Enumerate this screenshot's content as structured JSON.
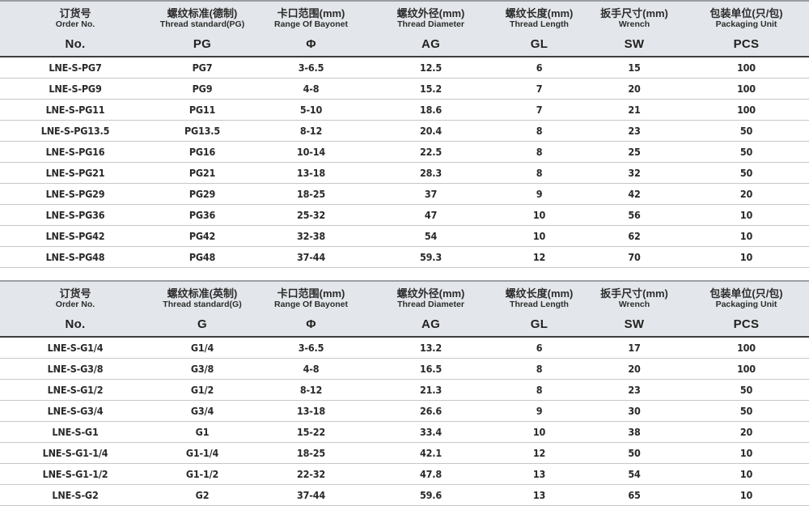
{
  "colors": {
    "header_bg": "#e3e6ea",
    "header_top_border": "#9b9fa3",
    "header_bottom_border": "#3c3e40",
    "row_separator": "#c5c7c9",
    "text": "#2a2a2a"
  },
  "tables": [
    {
      "name": "pg-metric-thread-table",
      "columns": [
        {
          "zh": "订货号",
          "en": "Order No.",
          "sym": "No."
        },
        {
          "zh": "螺纹标准(德制)",
          "en": "Thread standard(PG)",
          "sym": "PG"
        },
        {
          "zh": "卡口范围(mm)",
          "en": "Range Of Bayonet",
          "sym": "Φ"
        },
        {
          "zh": "螺纹外径(mm)",
          "en": "Thread Diameter",
          "sym": "AG"
        },
        {
          "zh": "螺纹长度(mm)",
          "en": "Thread Length",
          "sym": "GL"
        },
        {
          "zh": "扳手尺寸(mm)",
          "en": "Wrench",
          "sym": "SW"
        },
        {
          "zh": "包装单位(只/包)",
          "en": "Packaging Unit",
          "sym": "PCS"
        }
      ],
      "rows": [
        [
          "LNE-S-PG7",
          "PG7",
          "3-6.5",
          "12.5",
          "6",
          "15",
          "100"
        ],
        [
          "LNE-S-PG9",
          "PG9",
          "4-8",
          "15.2",
          "7",
          "20",
          "100"
        ],
        [
          "LNE-S-PG11",
          "PG11",
          "5-10",
          "18.6",
          "7",
          "21",
          "100"
        ],
        [
          "LNE-S-PG13.5",
          "PG13.5",
          "8-12",
          "20.4",
          "8",
          "23",
          "50"
        ],
        [
          "LNE-S-PG16",
          "PG16",
          "10-14",
          "22.5",
          "8",
          "25",
          "50"
        ],
        [
          "LNE-S-PG21",
          "PG21",
          "13-18",
          "28.3",
          "8",
          "32",
          "50"
        ],
        [
          "LNE-S-PG29",
          "PG29",
          "18-25",
          "37",
          "9",
          "42",
          "20"
        ],
        [
          "LNE-S-PG36",
          "PG36",
          "25-32",
          "47",
          "10",
          "56",
          "10"
        ],
        [
          "LNE-S-PG42",
          "PG42",
          "32-38",
          "54",
          "10",
          "62",
          "10"
        ],
        [
          "LNE-S-PG48",
          "PG48",
          "37-44",
          "59.3",
          "12",
          "70",
          "10"
        ]
      ]
    },
    {
      "name": "g-imperial-thread-table",
      "columns": [
        {
          "zh": "订货号",
          "en": "Order No.",
          "sym": "No."
        },
        {
          "zh": "螺纹标准(英制)",
          "en": "Thread standard(G)",
          "sym": "G"
        },
        {
          "zh": "卡口范围(mm)",
          "en": "Range Of Bayonet",
          "sym": "Φ"
        },
        {
          "zh": "螺纹外径(mm)",
          "en": "Thread Diameter",
          "sym": "AG"
        },
        {
          "zh": "螺纹长度(mm)",
          "en": "Thread Length",
          "sym": "GL"
        },
        {
          "zh": "扳手尺寸(mm)",
          "en": "Wrench",
          "sym": "SW"
        },
        {
          "zh": "包装单位(只/包)",
          "en": "Packaging Unit",
          "sym": "PCS"
        }
      ],
      "rows": [
        [
          "LNE-S-G1/4",
          "G1/4",
          "3-6.5",
          "13.2",
          "6",
          "17",
          "100"
        ],
        [
          "LNE-S-G3/8",
          "G3/8",
          "4-8",
          "16.5",
          "8",
          "20",
          "100"
        ],
        [
          "LNE-S-G1/2",
          "G1/2",
          "8-12",
          "21.3",
          "8",
          "23",
          "50"
        ],
        [
          "LNE-S-G3/4",
          "G3/4",
          "13-18",
          "26.6",
          "9",
          "30",
          "50"
        ],
        [
          "LNE-S-G1",
          "G1",
          "15-22",
          "33.4",
          "10",
          "38",
          "20"
        ],
        [
          "LNE-S-G1-1/4",
          "G1-1/4",
          "18-25",
          "42.1",
          "12",
          "50",
          "10"
        ],
        [
          "LNE-S-G1-1/2",
          "G1-1/2",
          "22-32",
          "47.8",
          "13",
          "54",
          "10"
        ],
        [
          "LNE-S-G2",
          "G2",
          "37-44",
          "59.6",
          "13",
          "65",
          "10"
        ]
      ]
    }
  ]
}
